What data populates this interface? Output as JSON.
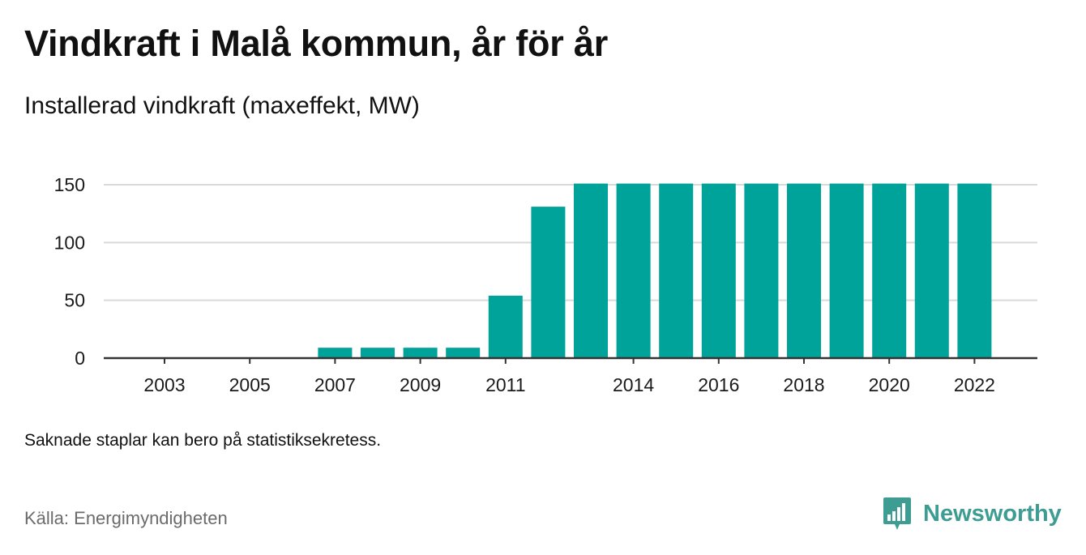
{
  "header": {
    "title": "Vindkraft i Malå kommun, år för år",
    "subtitle": "Installerad vindkraft (maxeffekt, MW)"
  },
  "footer": {
    "note": "Saknade staplar kan bero på statistiksekretess.",
    "source": "Källa: Energimyndigheten",
    "brand": "Newsworthy"
  },
  "colors": {
    "bar": "#00a39a",
    "brand": "#3e9d92",
    "grid": "#d9d9d9",
    "axis": "#333333"
  },
  "icons": {
    "brand_logo": "bar-chart-speech-bubble-icon"
  },
  "chart_data": {
    "type": "bar",
    "title": "Vindkraft i Malå kommun, år för år",
    "subtitle": "Installerad vindkraft (maxeffekt, MW)",
    "xlabel": "",
    "ylabel": "",
    "categories": [
      "2003",
      "2004",
      "2005",
      "2006",
      "2007",
      "2008",
      "2009",
      "2010",
      "2011",
      "2012",
      "2013",
      "2014",
      "2015",
      "2016",
      "2017",
      "2018",
      "2019",
      "2020",
      "2021",
      "2022"
    ],
    "x_tick_labels": [
      "2003",
      "2005",
      "2007",
      "2009",
      "2011",
      "2014",
      "2016",
      "2018",
      "2020",
      "2022"
    ],
    "values": [
      null,
      null,
      null,
      null,
      9,
      9,
      9,
      9,
      54,
      131,
      151,
      151,
      151,
      151,
      151,
      151,
      151,
      151,
      151,
      151
    ],
    "y_ticks": [
      0,
      50,
      100,
      150
    ],
    "ylim": [
      0,
      150
    ],
    "grid": true,
    "legend": "none"
  }
}
